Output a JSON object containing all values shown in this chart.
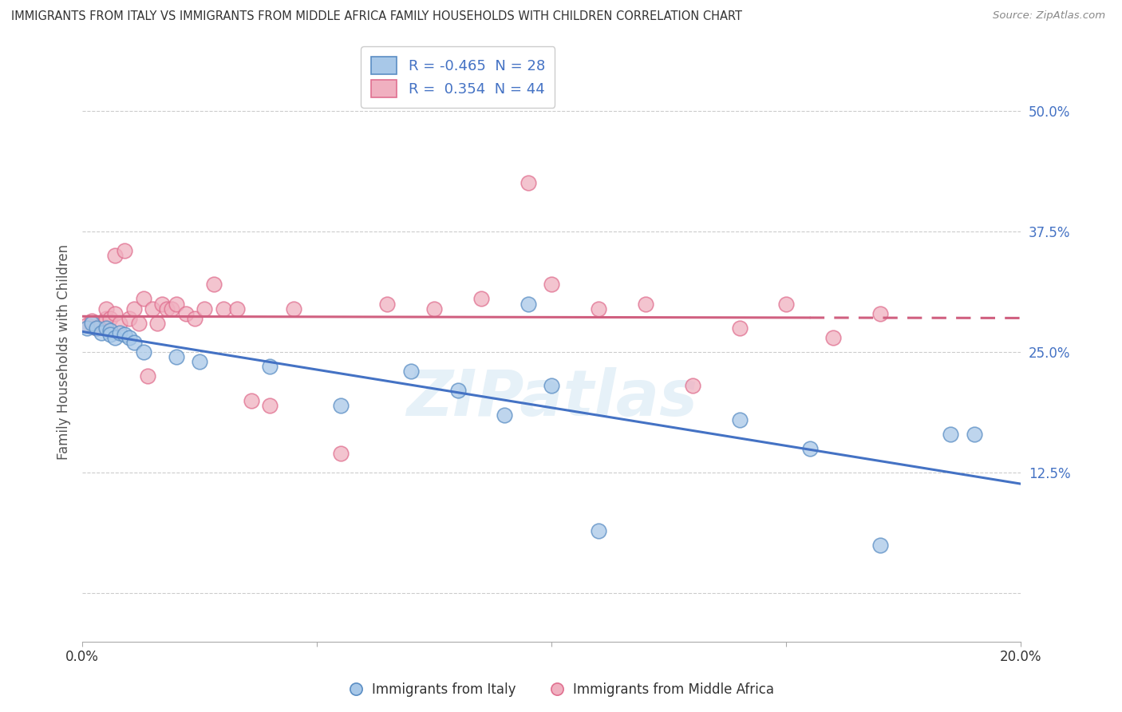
{
  "title": "IMMIGRANTS FROM ITALY VS IMMIGRANTS FROM MIDDLE AFRICA FAMILY HOUSEHOLDS WITH CHILDREN CORRELATION CHART",
  "source": "Source: ZipAtlas.com",
  "xlabel_blue": "Immigrants from Italy",
  "xlabel_pink": "Immigrants from Middle Africa",
  "ylabel": "Family Households with Children",
  "xlim": [
    0.0,
    0.2
  ],
  "ylim": [
    -0.05,
    0.55
  ],
  "xticks": [
    0.0,
    0.05,
    0.1,
    0.15,
    0.2
  ],
  "xticklabels": [
    "0.0%",
    "",
    "",
    "",
    "20.0%"
  ],
  "ytick_positions": [
    0.0,
    0.125,
    0.25,
    0.375,
    0.5
  ],
  "yticklabels_right": [
    "",
    "12.5%",
    "25.0%",
    "37.5%",
    "50.0%"
  ],
  "blue_R": -0.465,
  "blue_N": 28,
  "pink_R": 0.354,
  "pink_N": 44,
  "blue_color": "#a8c8e8",
  "blue_edge_color": "#5b8ec4",
  "blue_line_color": "#4472c4",
  "pink_color": "#f0b0c0",
  "pink_edge_color": "#e07090",
  "pink_line_color": "#d06080",
  "legend_label_color": "#4472c4",
  "right_tick_color": "#4472c4",
  "blue_scatter_x": [
    0.001,
    0.002,
    0.003,
    0.004,
    0.005,
    0.006,
    0.006,
    0.007,
    0.008,
    0.009,
    0.01,
    0.011,
    0.013,
    0.02,
    0.025,
    0.04,
    0.055,
    0.07,
    0.08,
    0.09,
    0.095,
    0.1,
    0.11,
    0.14,
    0.155,
    0.17,
    0.185,
    0.19
  ],
  "blue_scatter_y": [
    0.275,
    0.28,
    0.275,
    0.27,
    0.275,
    0.272,
    0.268,
    0.265,
    0.27,
    0.268,
    0.265,
    0.26,
    0.25,
    0.245,
    0.24,
    0.235,
    0.195,
    0.23,
    0.21,
    0.185,
    0.3,
    0.215,
    0.065,
    0.18,
    0.15,
    0.05,
    0.165,
    0.165
  ],
  "pink_scatter_x": [
    0.001,
    0.002,
    0.003,
    0.004,
    0.005,
    0.005,
    0.006,
    0.007,
    0.007,
    0.008,
    0.009,
    0.01,
    0.011,
    0.012,
    0.013,
    0.014,
    0.015,
    0.016,
    0.017,
    0.018,
    0.019,
    0.02,
    0.022,
    0.024,
    0.026,
    0.028,
    0.03,
    0.033,
    0.036,
    0.04,
    0.045,
    0.055,
    0.065,
    0.075,
    0.085,
    0.095,
    0.1,
    0.11,
    0.12,
    0.13,
    0.14,
    0.15,
    0.16,
    0.17
  ],
  "pink_scatter_y": [
    0.278,
    0.282,
    0.275,
    0.278,
    0.285,
    0.295,
    0.285,
    0.29,
    0.35,
    0.28,
    0.355,
    0.285,
    0.295,
    0.28,
    0.305,
    0.225,
    0.295,
    0.28,
    0.3,
    0.295,
    0.295,
    0.3,
    0.29,
    0.285,
    0.295,
    0.32,
    0.295,
    0.295,
    0.2,
    0.195,
    0.295,
    0.145,
    0.3,
    0.295,
    0.305,
    0.425,
    0.32,
    0.295,
    0.3,
    0.215,
    0.275,
    0.3,
    0.265,
    0.29
  ],
  "watermark": "ZIPatlas",
  "grid_color": "#cccccc",
  "background_color": "#ffffff"
}
